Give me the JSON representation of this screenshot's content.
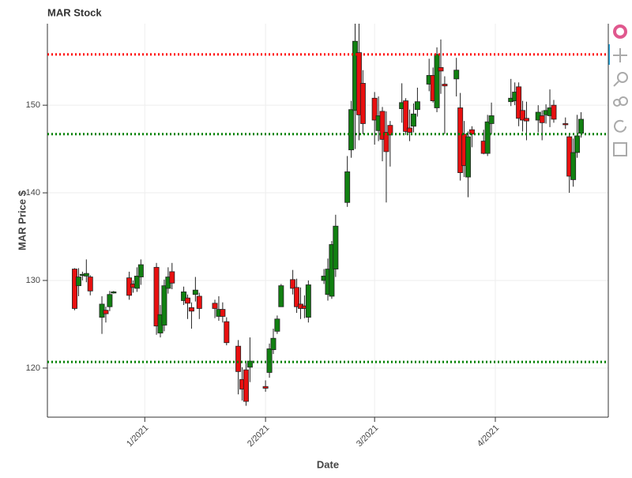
{
  "chart_data": {
    "type": "candlestick",
    "title": "MAR Stock",
    "x_label": "Date",
    "y_label": "MAR Price $",
    "x": [
      "2020-12-14",
      "2020-12-15",
      "2020-12-16",
      "2020-12-17",
      "2020-12-18",
      "2020-12-21",
      "2020-12-22",
      "2020-12-23",
      "2020-12-24",
      "2020-12-28",
      "2020-12-29",
      "2020-12-30",
      "2020-12-31",
      "2021-01-04",
      "2021-01-05",
      "2021-01-06",
      "2021-01-07",
      "2021-01-08",
      "2021-01-11",
      "2021-01-12",
      "2021-01-13",
      "2021-01-14",
      "2021-01-15",
      "2021-01-19",
      "2021-01-20",
      "2021-01-21",
      "2021-01-22",
      "2021-01-25",
      "2021-01-26",
      "2021-01-27",
      "2021-01-28",
      "2021-02-01",
      "2021-02-02",
      "2021-02-03",
      "2021-02-04",
      "2021-02-05",
      "2021-02-08",
      "2021-02-09",
      "2021-02-10",
      "2021-02-11",
      "2021-02-12",
      "2021-02-16",
      "2021-02-17",
      "2021-02-18",
      "2021-02-19",
      "2021-02-22",
      "2021-02-23",
      "2021-02-24",
      "2021-02-25",
      "2021-02-26",
      "2021-03-01",
      "2021-03-02",
      "2021-03-03",
      "2021-03-04",
      "2021-03-05",
      "2021-03-08",
      "2021-03-09",
      "2021-03-10",
      "2021-03-11",
      "2021-03-12",
      "2021-03-15",
      "2021-03-16",
      "2021-03-17",
      "2021-03-18",
      "2021-03-19",
      "2021-03-22",
      "2021-03-23",
      "2021-03-24",
      "2021-03-25",
      "2021-03-26",
      "2021-03-29",
      "2021-03-30",
      "2021-03-31",
      "2021-04-05",
      "2021-04-06",
      "2021-04-07",
      "2021-04-08",
      "2021-04-09",
      "2021-04-12",
      "2021-04-13",
      "2021-04-14",
      "2021-04-15",
      "2021-04-16",
      "2021-04-19",
      "2021-04-20",
      "2021-04-21",
      "2021-04-22",
      "2021-04-23"
    ],
    "open": [
      131.3,
      129.4,
      130.6,
      130.5,
      130.4,
      125.8,
      126.6,
      127.0,
      128.6,
      130.3,
      129.6,
      129.1,
      130.4,
      131.5,
      124.0,
      124.9,
      129.1,
      131.0,
      127.7,
      128.0,
      126.9,
      128.4,
      128.2,
      127.4,
      125.9,
      126.7,
      125.3,
      122.5,
      118.7,
      119.8,
      120.1,
      117.9,
      119.5,
      122.1,
      124.2,
      127.0,
      130.1,
      129.2,
      127.3,
      127.1,
      125.8,
      130.0,
      128.4,
      128.2,
      131.3,
      138.9,
      144.9,
      149.4,
      156.0,
      152.5,
      150.8,
      147.1,
      149.3,
      146.9,
      147.7,
      149.6,
      150.5,
      147.4,
      147.6,
      149.5,
      152.4,
      153.4,
      149.7,
      154.3,
      152.4,
      153.0,
      149.7,
      146.7,
      141.8,
      147.2,
      145.9,
      144.5,
      147.9,
      150.4,
      150.5,
      152.1,
      149.4,
      148.5,
      148.3,
      148.8,
      148.9,
      148.8,
      150.0,
      147.9,
      146.4,
      141.5,
      144.6,
      146.8
    ],
    "high": [
      131.4,
      131.4,
      131.0,
      132.4,
      130.6,
      128.2,
      127.0,
      128.8,
      128.8,
      131.0,
      130.0,
      131.5,
      132.4,
      132.0,
      127.2,
      130.1,
      131.5,
      132.0,
      129.3,
      128.4,
      127.5,
      130.4,
      128.6,
      127.8,
      128.2,
      127.5,
      125.8,
      123.2,
      120.1,
      120.7,
      123.5,
      118.6,
      122.8,
      124.5,
      126.0,
      129.6,
      131.2,
      130.2,
      129.2,
      128.3,
      130.0,
      131.3,
      132.5,
      134.5,
      137.5,
      144.2,
      150.5,
      159.3,
      159.3,
      154.0,
      151.5,
      151.0,
      149.8,
      149.3,
      148.2,
      152.5,
      150.8,
      149.5,
      150.2,
      152.0,
      155.3,
      154.3,
      156.6,
      157.5,
      153.3,
      155.4,
      151.4,
      148.2,
      147.0,
      147.6,
      147.2,
      148.9,
      150.3,
      153.0,
      152.6,
      152.6,
      150.5,
      150.4,
      150.0,
      149.4,
      150.1,
      151.8,
      150.6,
      148.6,
      146.7,
      146.2,
      148.9,
      149.2
    ],
    "low": [
      126.6,
      128.2,
      130.0,
      129.8,
      128.3,
      123.9,
      125.2,
      126.5,
      128.5,
      127.8,
      128.6,
      128.7,
      129.5,
      123.8,
      123.5,
      124.2,
      128.5,
      129.0,
      127.2,
      125.6,
      124.5,
      127.6,
      125.6,
      125.7,
      125.4,
      125.2,
      122.6,
      117.0,
      116.3,
      115.7,
      118.4,
      117.3,
      118.9,
      121.6,
      123.9,
      127.0,
      128.4,
      126.3,
      125.6,
      125.7,
      125.2,
      129.6,
      127.7,
      127.9,
      130.4,
      138.4,
      144.0,
      145.0,
      146.0,
      146.7,
      145.5,
      145.9,
      143.6,
      138.9,
      143.0,
      148.0,
      146.6,
      145.9,
      146.9,
      148.7,
      151.6,
      150.3,
      149.2,
      151.3,
      146.7,
      151.0,
      141.4,
      141.8,
      139.5,
      145.2,
      144.4,
      144.2,
      146.7,
      149.9,
      150.0,
      147.6,
      147.0,
      146.0,
      146.9,
      146.0,
      147.9,
      147.5,
      148.0,
      147.3,
      140.0,
      140.7,
      144.0,
      146.3
    ],
    "close": [
      126.8,
      130.4,
      130.7,
      130.8,
      128.8,
      127.3,
      126.2,
      128.4,
      128.7,
      128.3,
      129.2,
      130.5,
      131.8,
      124.8,
      126.1,
      129.4,
      130.4,
      129.7,
      128.7,
      127.4,
      126.5,
      128.9,
      126.8,
      126.8,
      126.7,
      125.9,
      122.9,
      119.6,
      117.6,
      116.2,
      120.8,
      117.7,
      122.2,
      123.4,
      125.6,
      129.4,
      129.1,
      127.0,
      126.8,
      126.8,
      129.5,
      130.5,
      131.3,
      134.1,
      136.2,
      142.4,
      149.5,
      157.3,
      148.9,
      147.9,
      148.3,
      148.8,
      146.1,
      144.7,
      146.6,
      150.3,
      147.0,
      146.9,
      149.0,
      150.4,
      153.4,
      150.5,
      155.8,
      153.9,
      152.2,
      154.0,
      142.3,
      143.1,
      146.4,
      146.7,
      144.5,
      148.1,
      148.8,
      150.8,
      151.5,
      148.5,
      148.3,
      148.2,
      149.2,
      148.0,
      149.4,
      149.7,
      148.4,
      147.8,
      141.9,
      144.6,
      146.5,
      148.4
    ],
    "increasing_color": "#118011",
    "decreasing_color": "#e81010",
    "hlines": [
      {
        "value": 155.8,
        "color": "#ff0000"
      },
      {
        "value": 146.7,
        "color": "#008000"
      },
      {
        "value": 120.7,
        "color": "#008000"
      }
    ],
    "xlim": [
      "2020-12-07",
      "2021-04-30"
    ],
    "xticks": [
      {
        "value": "2021-01-01",
        "label": "1/2021"
      },
      {
        "value": "2021-02-01",
        "label": "2/2021"
      },
      {
        "value": "2021-03-01",
        "label": "3/2021"
      },
      {
        "value": "2021-04-01",
        "label": "4/2021"
      }
    ],
    "ylim": [
      114.4,
      159.3
    ],
    "yticks": [
      120,
      130,
      140,
      150
    ],
    "grid": true
  }
}
